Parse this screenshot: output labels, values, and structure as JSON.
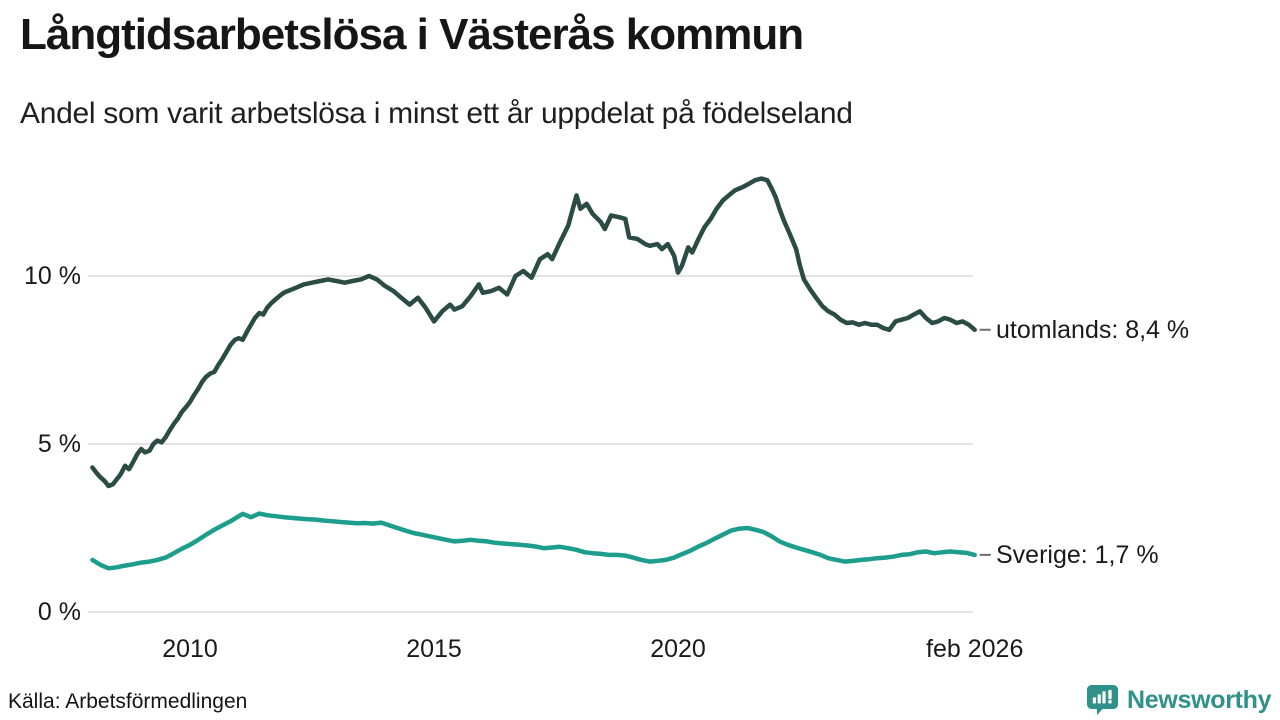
{
  "chart_data": {
    "type": "line",
    "title": "Långtidsarbetslösa i Västerås kommun",
    "subtitle": "Andel som varit arbetslösa i minst ett år uppdelat på födelseland",
    "y_unit": "%",
    "ylim": [
      0,
      13.5
    ],
    "xlim": [
      2007.9,
      2026.2
    ],
    "grid": "horizontal",
    "legend_position": "end-of-line-labels",
    "yticks": [
      {
        "value": 0,
        "label": "0 %"
      },
      {
        "value": 5,
        "label": "5 %"
      },
      {
        "value": 10,
        "label": "10 %"
      }
    ],
    "xticks": [
      {
        "value": 2010,
        "label": "2010"
      },
      {
        "value": 2015,
        "label": "2015"
      },
      {
        "value": 2020,
        "label": "2020"
      },
      {
        "value": 2026.08,
        "label": "feb 2026"
      }
    ],
    "series": [
      {
        "name": "utomlands",
        "color": "#2a4c42",
        "end_label": "utomlands: 8,4 %",
        "final_value": 8.4,
        "points": [
          [
            2008.0,
            4.3
          ],
          [
            2008.08,
            4.15
          ],
          [
            2008.17,
            4.0
          ],
          [
            2008.25,
            3.9
          ],
          [
            2008.33,
            3.75
          ],
          [
            2008.42,
            3.8
          ],
          [
            2008.5,
            3.95
          ],
          [
            2008.58,
            4.1
          ],
          [
            2008.67,
            4.35
          ],
          [
            2008.75,
            4.25
          ],
          [
            2008.83,
            4.45
          ],
          [
            2008.92,
            4.7
          ],
          [
            2009.0,
            4.85
          ],
          [
            2009.08,
            4.75
          ],
          [
            2009.17,
            4.8
          ],
          [
            2009.25,
            5.0
          ],
          [
            2009.33,
            5.1
          ],
          [
            2009.42,
            5.05
          ],
          [
            2009.5,
            5.2
          ],
          [
            2009.58,
            5.4
          ],
          [
            2009.67,
            5.6
          ],
          [
            2009.75,
            5.75
          ],
          [
            2009.83,
            5.95
          ],
          [
            2009.92,
            6.1
          ],
          [
            2010.0,
            6.25
          ],
          [
            2010.08,
            6.45
          ],
          [
            2010.17,
            6.65
          ],
          [
            2010.25,
            6.85
          ],
          [
            2010.33,
            7.0
          ],
          [
            2010.42,
            7.1
          ],
          [
            2010.5,
            7.15
          ],
          [
            2010.58,
            7.35
          ],
          [
            2010.67,
            7.55
          ],
          [
            2010.75,
            7.75
          ],
          [
            2010.83,
            7.95
          ],
          [
            2010.92,
            8.1
          ],
          [
            2011.0,
            8.15
          ],
          [
            2011.08,
            8.1
          ],
          [
            2011.17,
            8.35
          ],
          [
            2011.25,
            8.55
          ],
          [
            2011.33,
            8.75
          ],
          [
            2011.42,
            8.9
          ],
          [
            2011.5,
            8.85
          ],
          [
            2011.58,
            9.05
          ],
          [
            2011.67,
            9.2
          ],
          [
            2011.75,
            9.3
          ],
          [
            2011.83,
            9.4
          ],
          [
            2011.92,
            9.5
          ],
          [
            2012.0,
            9.55
          ],
          [
            2012.17,
            9.65
          ],
          [
            2012.33,
            9.75
          ],
          [
            2012.5,
            9.8
          ],
          [
            2012.67,
            9.85
          ],
          [
            2012.83,
            9.9
          ],
          [
            2013.0,
            9.85
          ],
          [
            2013.17,
            9.8
          ],
          [
            2013.33,
            9.85
          ],
          [
            2013.5,
            9.9
          ],
          [
            2013.67,
            10.0
          ],
          [
            2013.83,
            9.9
          ],
          [
            2014.0,
            9.7
          ],
          [
            2014.17,
            9.55
          ],
          [
            2014.33,
            9.35
          ],
          [
            2014.5,
            9.15
          ],
          [
            2014.67,
            9.35
          ],
          [
            2014.83,
            9.05
          ],
          [
            2015.0,
            8.65
          ],
          [
            2015.17,
            8.95
          ],
          [
            2015.33,
            9.15
          ],
          [
            2015.42,
            9.0
          ],
          [
            2015.58,
            9.1
          ],
          [
            2015.75,
            9.4
          ],
          [
            2015.92,
            9.75
          ],
          [
            2016.0,
            9.5
          ],
          [
            2016.17,
            9.55
          ],
          [
            2016.33,
            9.65
          ],
          [
            2016.5,
            9.45
          ],
          [
            2016.67,
            10.0
          ],
          [
            2016.83,
            10.15
          ],
          [
            2017.0,
            9.95
          ],
          [
            2017.17,
            10.5
          ],
          [
            2017.33,
            10.65
          ],
          [
            2017.42,
            10.5
          ],
          [
            2017.58,
            11.0
          ],
          [
            2017.75,
            11.5
          ],
          [
            2017.92,
            12.4
          ],
          [
            2018.0,
            12.0
          ],
          [
            2018.13,
            12.15
          ],
          [
            2018.25,
            11.85
          ],
          [
            2018.42,
            11.6
          ],
          [
            2018.5,
            11.4
          ],
          [
            2018.63,
            11.8
          ],
          [
            2018.79,
            11.75
          ],
          [
            2018.92,
            11.7
          ],
          [
            2019.0,
            11.15
          ],
          [
            2019.17,
            11.1
          ],
          [
            2019.33,
            10.95
          ],
          [
            2019.42,
            10.9
          ],
          [
            2019.58,
            10.95
          ],
          [
            2019.67,
            10.8
          ],
          [
            2019.79,
            10.95
          ],
          [
            2019.92,
            10.6
          ],
          [
            2020.0,
            10.1
          ],
          [
            2020.08,
            10.3
          ],
          [
            2020.21,
            10.85
          ],
          [
            2020.29,
            10.7
          ],
          [
            2020.42,
            11.1
          ],
          [
            2020.54,
            11.45
          ],
          [
            2020.67,
            11.7
          ],
          [
            2020.79,
            12.0
          ],
          [
            2020.92,
            12.25
          ],
          [
            2021.04,
            12.4
          ],
          [
            2021.17,
            12.55
          ],
          [
            2021.33,
            12.65
          ],
          [
            2021.46,
            12.75
          ],
          [
            2021.58,
            12.85
          ],
          [
            2021.71,
            12.9
          ],
          [
            2021.83,
            12.85
          ],
          [
            2021.92,
            12.6
          ],
          [
            2022.0,
            12.35
          ],
          [
            2022.08,
            12.0
          ],
          [
            2022.17,
            11.65
          ],
          [
            2022.29,
            11.25
          ],
          [
            2022.42,
            10.8
          ],
          [
            2022.5,
            10.3
          ],
          [
            2022.58,
            9.9
          ],
          [
            2022.71,
            9.6
          ],
          [
            2022.83,
            9.35
          ],
          [
            2022.96,
            9.1
          ],
          [
            2023.08,
            8.95
          ],
          [
            2023.21,
            8.85
          ],
          [
            2023.33,
            8.7
          ],
          [
            2023.46,
            8.6
          ],
          [
            2023.58,
            8.62
          ],
          [
            2023.71,
            8.55
          ],
          [
            2023.83,
            8.6
          ],
          [
            2023.96,
            8.55
          ],
          [
            2024.08,
            8.55
          ],
          [
            2024.21,
            8.45
          ],
          [
            2024.33,
            8.4
          ],
          [
            2024.46,
            8.65
          ],
          [
            2024.58,
            8.7
          ],
          [
            2024.71,
            8.75
          ],
          [
            2024.83,
            8.85
          ],
          [
            2024.96,
            8.95
          ],
          [
            2025.08,
            8.75
          ],
          [
            2025.21,
            8.6
          ],
          [
            2025.33,
            8.65
          ],
          [
            2025.46,
            8.75
          ],
          [
            2025.58,
            8.7
          ],
          [
            2025.71,
            8.6
          ],
          [
            2025.83,
            8.65
          ],
          [
            2025.96,
            8.55
          ],
          [
            2026.08,
            8.4
          ]
        ]
      },
      {
        "name": "Sverige",
        "color": "#1d9e8c",
        "end_label": "Sverige: 1,7 %",
        "final_value": 1.7,
        "points": [
          [
            2008.0,
            1.55
          ],
          [
            2008.17,
            1.4
          ],
          [
            2008.33,
            1.3
          ],
          [
            2008.5,
            1.33
          ],
          [
            2008.67,
            1.38
          ],
          [
            2008.83,
            1.42
          ],
          [
            2009.0,
            1.47
          ],
          [
            2009.17,
            1.5
          ],
          [
            2009.33,
            1.55
          ],
          [
            2009.5,
            1.62
          ],
          [
            2009.67,
            1.75
          ],
          [
            2009.83,
            1.88
          ],
          [
            2010.0,
            2.0
          ],
          [
            2010.17,
            2.15
          ],
          [
            2010.33,
            2.3
          ],
          [
            2010.5,
            2.45
          ],
          [
            2010.67,
            2.58
          ],
          [
            2010.83,
            2.7
          ],
          [
            2011.0,
            2.85
          ],
          [
            2011.08,
            2.92
          ],
          [
            2011.25,
            2.82
          ],
          [
            2011.42,
            2.93
          ],
          [
            2011.58,
            2.88
          ],
          [
            2011.75,
            2.85
          ],
          [
            2011.92,
            2.82
          ],
          [
            2012.08,
            2.8
          ],
          [
            2012.25,
            2.78
          ],
          [
            2012.42,
            2.76
          ],
          [
            2012.58,
            2.75
          ],
          [
            2012.75,
            2.72
          ],
          [
            2012.92,
            2.7
          ],
          [
            2013.08,
            2.68
          ],
          [
            2013.25,
            2.66
          ],
          [
            2013.42,
            2.64
          ],
          [
            2013.58,
            2.65
          ],
          [
            2013.75,
            2.63
          ],
          [
            2013.92,
            2.66
          ],
          [
            2014.08,
            2.58
          ],
          [
            2014.25,
            2.5
          ],
          [
            2014.42,
            2.42
          ],
          [
            2014.58,
            2.35
          ],
          [
            2014.75,
            2.3
          ],
          [
            2014.92,
            2.25
          ],
          [
            2015.08,
            2.2
          ],
          [
            2015.25,
            2.15
          ],
          [
            2015.42,
            2.1
          ],
          [
            2015.58,
            2.12
          ],
          [
            2015.75,
            2.15
          ],
          [
            2015.92,
            2.12
          ],
          [
            2016.08,
            2.1
          ],
          [
            2016.25,
            2.06
          ],
          [
            2016.42,
            2.04
          ],
          [
            2016.58,
            2.02
          ],
          [
            2016.75,
            2.0
          ],
          [
            2016.92,
            1.98
          ],
          [
            2017.08,
            1.95
          ],
          [
            2017.25,
            1.9
          ],
          [
            2017.42,
            1.92
          ],
          [
            2017.58,
            1.94
          ],
          [
            2017.75,
            1.9
          ],
          [
            2017.92,
            1.85
          ],
          [
            2018.08,
            1.78
          ],
          [
            2018.25,
            1.75
          ],
          [
            2018.42,
            1.73
          ],
          [
            2018.58,
            1.7
          ],
          [
            2018.75,
            1.7
          ],
          [
            2018.92,
            1.68
          ],
          [
            2019.08,
            1.62
          ],
          [
            2019.25,
            1.55
          ],
          [
            2019.42,
            1.5
          ],
          [
            2019.58,
            1.52
          ],
          [
            2019.75,
            1.55
          ],
          [
            2019.92,
            1.62
          ],
          [
            2020.08,
            1.72
          ],
          [
            2020.25,
            1.82
          ],
          [
            2020.42,
            1.95
          ],
          [
            2020.58,
            2.05
          ],
          [
            2020.75,
            2.18
          ],
          [
            2020.92,
            2.3
          ],
          [
            2021.08,
            2.42
          ],
          [
            2021.25,
            2.48
          ],
          [
            2021.42,
            2.5
          ],
          [
            2021.58,
            2.45
          ],
          [
            2021.75,
            2.38
          ],
          [
            2021.92,
            2.25
          ],
          [
            2022.08,
            2.1
          ],
          [
            2022.25,
            2.0
          ],
          [
            2022.42,
            1.92
          ],
          [
            2022.58,
            1.85
          ],
          [
            2022.75,
            1.78
          ],
          [
            2022.92,
            1.7
          ],
          [
            2023.08,
            1.6
          ],
          [
            2023.25,
            1.55
          ],
          [
            2023.42,
            1.5
          ],
          [
            2023.58,
            1.52
          ],
          [
            2023.75,
            1.55
          ],
          [
            2023.92,
            1.57
          ],
          [
            2024.08,
            1.6
          ],
          [
            2024.25,
            1.62
          ],
          [
            2024.42,
            1.65
          ],
          [
            2024.58,
            1.7
          ],
          [
            2024.75,
            1.72
          ],
          [
            2024.92,
            1.78
          ],
          [
            2025.08,
            1.8
          ],
          [
            2025.25,
            1.75
          ],
          [
            2025.42,
            1.78
          ],
          [
            2025.58,
            1.8
          ],
          [
            2025.75,
            1.78
          ],
          [
            2025.92,
            1.76
          ],
          [
            2026.08,
            1.7
          ]
        ]
      }
    ]
  },
  "footer": {
    "source": "Källa: Arbetsförmedlingen",
    "brand": "Newsworthy"
  },
  "colors": {
    "series_utomlands": "#2a4c42",
    "series_sverige": "#1d9e8c",
    "gridline": "#e3e3e3",
    "brand_teal": "#2f918a",
    "text": "#1a1a1a"
  }
}
